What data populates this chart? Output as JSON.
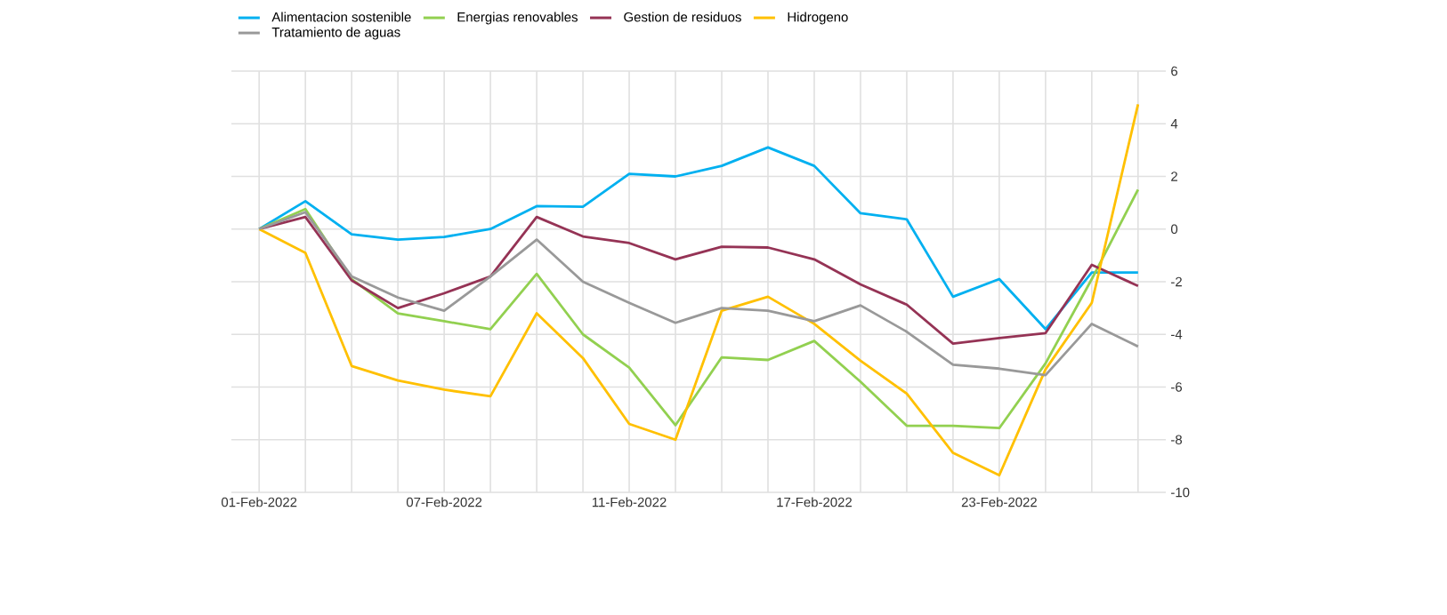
{
  "chart_data": {
    "type": "line",
    "categories": [
      "01-Feb-2022",
      null,
      null,
      null,
      "07-Feb-2022",
      null,
      null,
      null,
      "11-Feb-2022",
      null,
      null,
      null,
      "17-Feb-2022",
      null,
      null,
      null,
      "23-Feb-2022",
      null,
      null,
      null
    ],
    "series": [
      {
        "name": "Alimentacion sostenible",
        "color": "#00b0f0",
        "values": [
          0,
          1.06,
          -0.2,
          -0.4,
          -0.3,
          0,
          0.87,
          0.85,
          2.1,
          2.0,
          2.4,
          3.1,
          2.4,
          0.6,
          0.37,
          -2.57,
          -1.9,
          -3.8,
          -1.65,
          -1.65
        ]
      },
      {
        "name": "Energias renovables",
        "color": "#92d050",
        "values": [
          0,
          0.76,
          -1.9,
          -3.2,
          -3.5,
          -3.8,
          -1.7,
          -4.0,
          -5.26,
          -7.45,
          -4.87,
          -4.97,
          -4.25,
          -5.8,
          -7.47,
          -7.47,
          -7.56,
          -5.1,
          -1.9,
          1.5
        ]
      },
      {
        "name": "Gestion de residuos",
        "color": "#953355",
        "values": [
          0,
          0.46,
          -1.95,
          -3.0,
          -2.44,
          -1.8,
          0.46,
          -0.28,
          -0.53,
          -1.15,
          -0.67,
          -0.7,
          -1.15,
          -2.1,
          -2.87,
          -4.35,
          -4.14,
          -3.95,
          -1.36,
          -2.16
        ]
      },
      {
        "name": "Hidrogeno",
        "color": "#ffc000",
        "values": [
          0,
          -0.9,
          -5.2,
          -5.75,
          -6.1,
          -6.35,
          -3.2,
          -4.9,
          -7.4,
          -8.0,
          -3.1,
          -2.57,
          -3.6,
          -5.0,
          -6.25,
          -8.5,
          -9.35,
          -5.33,
          -2.8,
          4.74
        ]
      },
      {
        "name": "Tratamiento de aguas",
        "color": "#999999",
        "values": [
          0,
          0.64,
          -1.8,
          -2.6,
          -3.1,
          -1.8,
          -0.4,
          -2.0,
          -2.8,
          -3.56,
          -3.0,
          -3.1,
          -3.5,
          -2.9,
          -3.9,
          -5.15,
          -5.3,
          -5.55,
          -3.6,
          -4.46
        ]
      }
    ],
    "ylim": [
      -10,
      6
    ],
    "yticks": [
      -10,
      -8,
      -6,
      -4,
      -2,
      0,
      2,
      4,
      6
    ],
    "grid": true,
    "legend": "top left",
    "marker": "none",
    "line_style": "solid"
  }
}
